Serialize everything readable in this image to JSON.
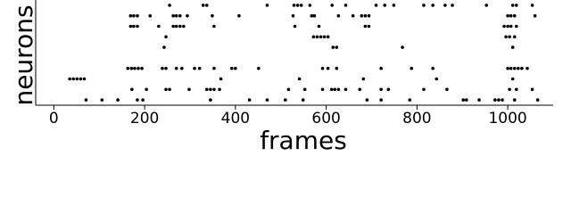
{
  "chart_data": {
    "type": "scatter",
    "x_label": "frames",
    "y_label": "neurons",
    "color": "#000000",
    "xlim": [
      -40,
      1100
    ],
    "xticks": [
      0,
      200,
      400,
      600,
      800,
      1000
    ],
    "ylim": [
      0.5,
      10.5
    ],
    "series": [
      {
        "y": 10,
        "x": [
          255,
          329,
          337,
          470,
          529,
          537,
          545,
          564,
          613,
          643,
          710,
          729,
          749,
          815,
          835,
          862,
          878,
          953,
          1011,
          1019,
          1054
        ]
      },
      {
        "y": 9,
        "x": [
          169,
          176,
          184,
          212,
          263,
          270,
          278,
          294,
          349,
          408,
          527,
          568,
          574,
          627,
          659,
          678,
          686,
          694,
          1000,
          1007,
          1015,
          1060
        ]
      },
      {
        "y": 8,
        "x": [
          169,
          176,
          184,
          231,
          263,
          270,
          278,
          286,
          353,
          531,
          584,
          686,
          694,
          992,
          1000,
          1007,
          1019
        ]
      },
      {
        "y": 7,
        "x": [
          247,
          572,
          580,
          588,
          596,
          604,
          996,
          1004,
          1015
        ]
      },
      {
        "y": 6,
        "x": [
          243,
          615,
          623,
          768,
          1011
        ]
      },
      {
        "y": 4,
        "x": [
          163,
          171,
          178,
          186,
          194,
          239,
          247,
          270,
          282,
          310,
          321,
          353,
          392,
          400,
          451,
          592,
          604,
          623,
          721,
          788,
          835,
          1000,
          1007,
          1015,
          1023,
          1031,
          1043
        ]
      },
      {
        "y": 3,
        "x": [
          35,
          43,
          51,
          59,
          67,
          368,
          541,
          682,
          843,
          1011
        ]
      },
      {
        "y": 2,
        "x": [
          172,
          204,
          247,
          255,
          298,
          337,
          345,
          353,
          365,
          517,
          553,
          592,
          612,
          619,
          627,
          643,
          674,
          721,
          737,
          815,
          866,
          1004,
          1019,
          1054
        ]
      },
      {
        "y": 1,
        "x": [
          71,
          106,
          141,
          184,
          196,
          345,
          431,
          470,
          510,
          549,
          690,
          721,
          784,
          902,
          909,
          937,
          972,
          980,
          988,
          1015,
          1066
        ]
      }
    ]
  }
}
